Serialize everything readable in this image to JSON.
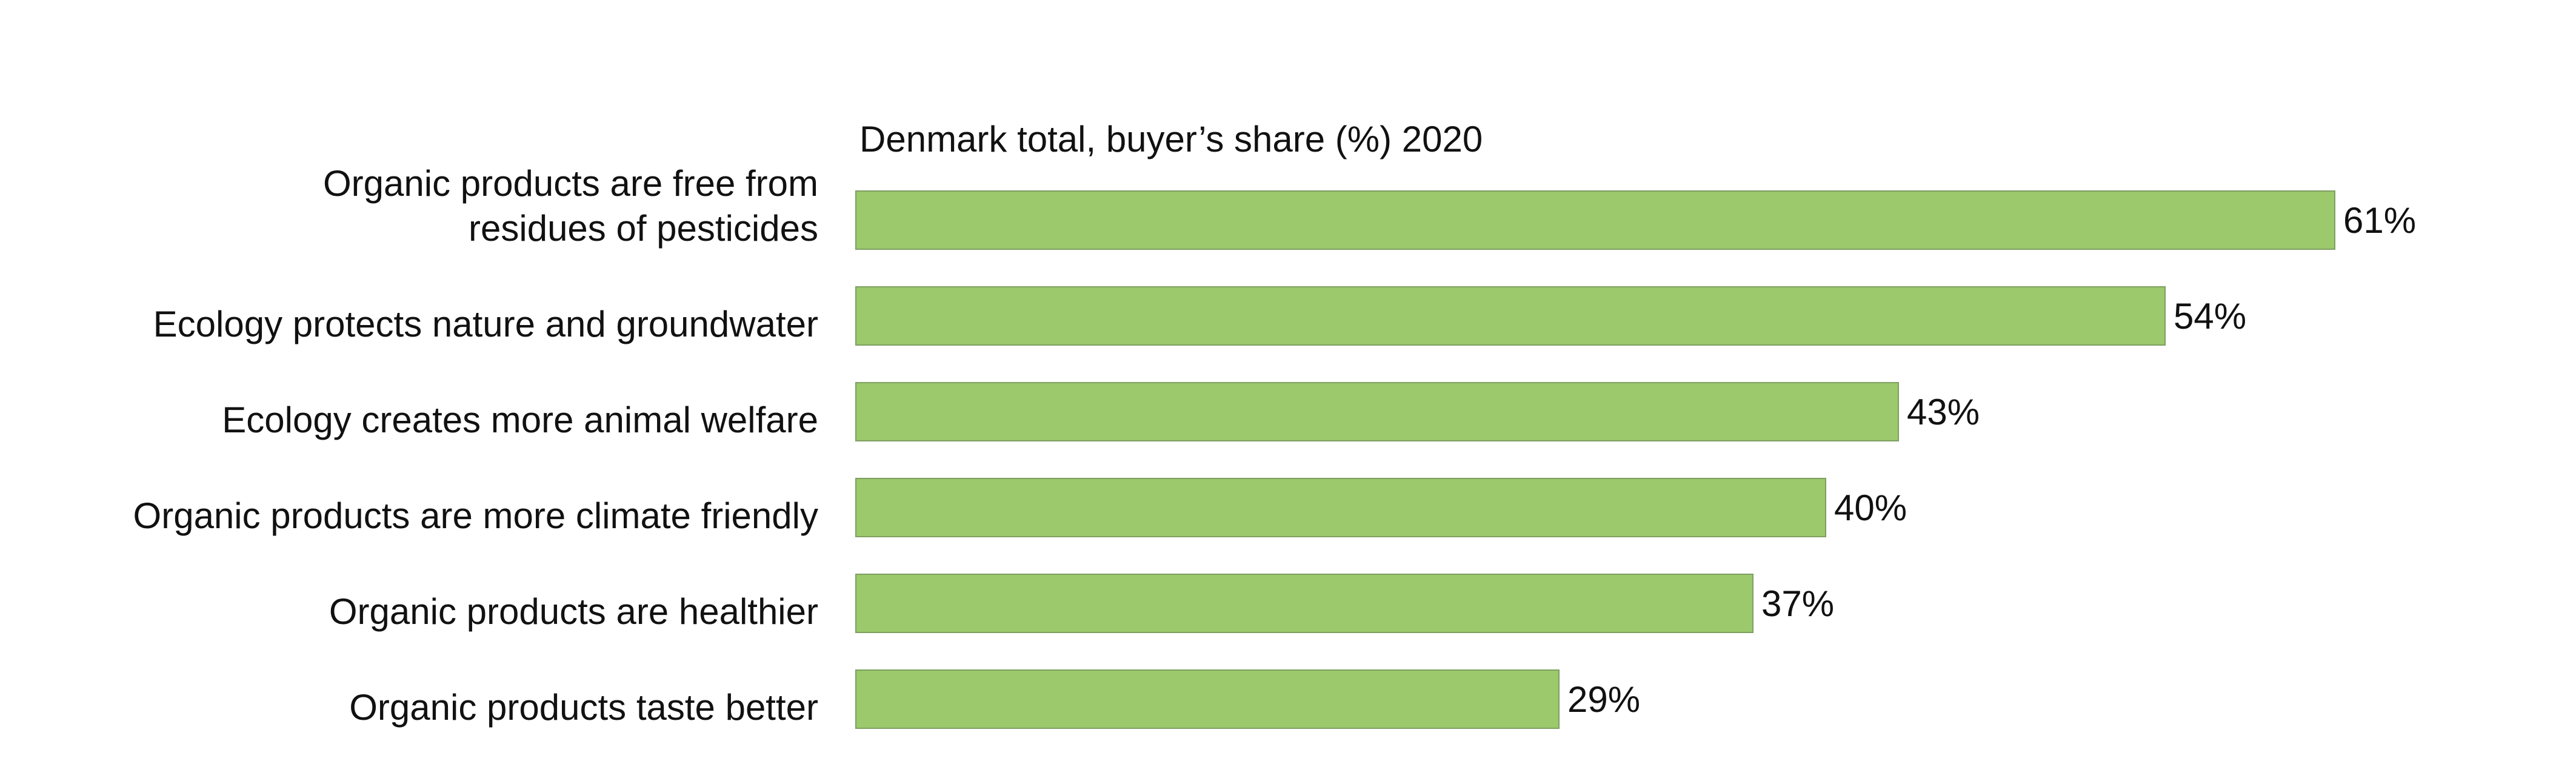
{
  "chart_data": {
    "type": "bar",
    "orientation": "horizontal",
    "title": "Denmark total, buyer’s share (%) 2020",
    "xlabel": "",
    "ylabel": "",
    "xlim": [
      0,
      61
    ],
    "grid": false,
    "legend": "none",
    "categories": [
      [
        "Organic products are free from",
        "residues of pesticides"
      ],
      [
        "Ecology protects nature and groundwater"
      ],
      [
        "Ecology creates more animal welfare"
      ],
      [
        "Organic products are more climate friendly"
      ],
      [
        "Organic products are healthier"
      ],
      [
        "Organic products taste better"
      ]
    ],
    "values": [
      61,
      54,
      43,
      40,
      37,
      29
    ],
    "value_labels": [
      "61%",
      "54%",
      "43%",
      "40%",
      "37%",
      "29%"
    ],
    "colors": {
      "bar_fill": "#9bc96c",
      "bar_stroke": "#7f9f62",
      "text": "#111111"
    }
  }
}
